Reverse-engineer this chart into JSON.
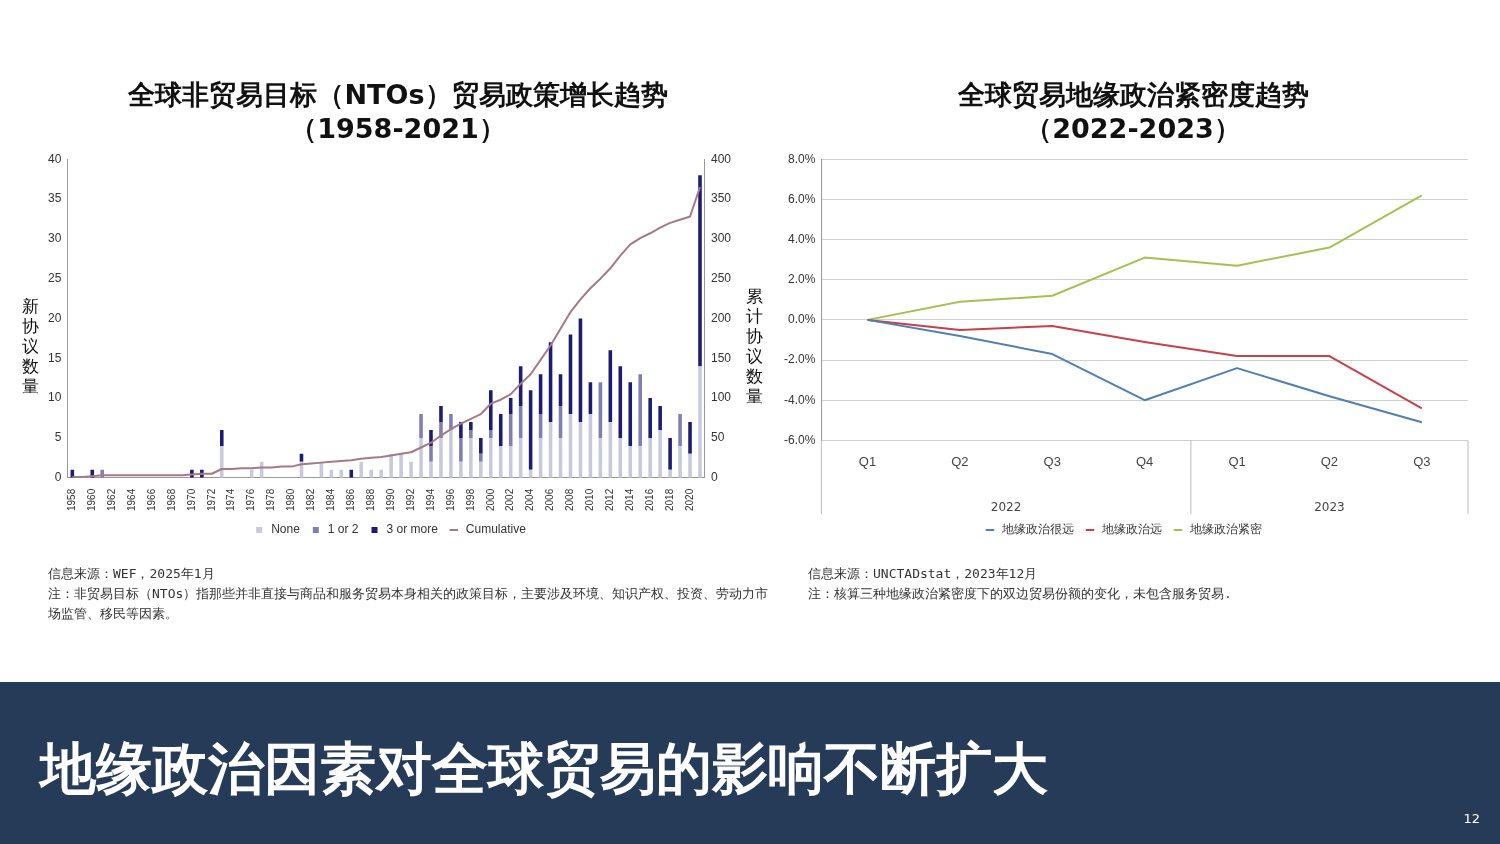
{
  "chart_data": [
    {
      "type": "bar",
      "title": "全球非贸易目标（NTOs）贸易政策增长趋势（1958-2021）",
      "ylabel": "新协议数量",
      "y2label": "累计协议数量",
      "categories": [
        "1958",
        null,
        "1960",
        null,
        "1962",
        null,
        "1964",
        null,
        "1966",
        null,
        "1968",
        null,
        "1970",
        null,
        "1972",
        null,
        "1974",
        null,
        "1976",
        null,
        "1978",
        null,
        "1980",
        null,
        "1982",
        null,
        "1984",
        null,
        "1986",
        null,
        "1988",
        null,
        "1990",
        null,
        "1992",
        null,
        "1994",
        null,
        "1996",
        null,
        "1998",
        null,
        "2000",
        null,
        "2002",
        null,
        "2004",
        null,
        "2006",
        null,
        "2008",
        null,
        "2010",
        null,
        "2012",
        null,
        "2014",
        null,
        "2016",
        null,
        "2018",
        null,
        "2020",
        null
      ],
      "stacked": true,
      "series": [
        {
          "name": "None",
          "color": "#c9c9dd",
          "values": [
            0,
            0,
            0,
            0,
            0,
            0,
            0,
            0,
            0,
            0,
            0,
            0,
            0,
            0,
            0,
            4,
            0,
            0,
            1,
            2,
            0,
            0,
            0,
            2,
            0,
            2,
            1,
            1,
            0,
            2,
            1,
            1,
            3,
            3,
            2,
            5,
            2,
            5,
            6,
            2,
            5,
            2,
            5,
            4,
            4,
            5,
            1,
            5,
            7,
            5,
            8,
            7,
            8,
            5,
            7,
            5,
            4,
            4,
            5,
            6,
            1,
            4,
            3,
            14
          ]
        },
        {
          "name": "1 or 2",
          "color": "#7f7fb3",
          "values": [
            0,
            0,
            0,
            1,
            0,
            0,
            0,
            0,
            0,
            0,
            0,
            0,
            0,
            0,
            0,
            0,
            0,
            0,
            0,
            0,
            0,
            0,
            0,
            0,
            0,
            0,
            0,
            0,
            0,
            0,
            0,
            0,
            0,
            0,
            0,
            3,
            2,
            2,
            2,
            3,
            1,
            1,
            1,
            0,
            4,
            4,
            0,
            3,
            0,
            4,
            0,
            0,
            0,
            7,
            0,
            0,
            0,
            9,
            0,
            0,
            0,
            4,
            0,
            0
          ]
        },
        {
          "name": "3 or more",
          "color": "#1c1c72",
          "values": [
            1,
            0,
            1,
            0,
            0,
            0,
            0,
            0,
            0,
            0,
            0,
            0,
            1,
            1,
            0,
            2,
            0,
            0,
            0,
            0,
            0,
            0,
            0,
            1,
            0,
            0,
            0,
            0,
            1,
            0,
            0,
            0,
            0,
            0,
            0,
            0,
            2,
            2,
            0,
            2,
            1,
            2,
            5,
            4,
            2,
            5,
            10,
            5,
            10,
            4,
            10,
            13,
            4,
            0,
            9,
            9,
            8,
            0,
            5,
            3,
            4,
            0,
            4,
            24
          ]
        },
        {
          "name": "Cumulative",
          "type": "line",
          "axis": "y2",
          "color": "#a47a86",
          "values": [
            1,
            1,
            2,
            3,
            3,
            3,
            3,
            3,
            3,
            3,
            3,
            3,
            4,
            5,
            5,
            11,
            11,
            12,
            12,
            13,
            13,
            14,
            14,
            17,
            18,
            19,
            20,
            21,
            22,
            24,
            25,
            26,
            28,
            30,
            32,
            38,
            44,
            53,
            61,
            68,
            74,
            80,
            93,
            98,
            105,
            118,
            130,
            148,
            166,
            187,
            208,
            224,
            238,
            250,
            263,
            279,
            293,
            301,
            307,
            314,
            320,
            324,
            328,
            365
          ]
        }
      ],
      "ylim": [
        0,
        40
      ],
      "yticks": [
        0,
        5,
        10,
        15,
        20,
        25,
        30,
        35,
        40
      ],
      "y2lim": [
        0,
        400
      ],
      "y2ticks": [
        0,
        50,
        100,
        150,
        200,
        250,
        300,
        350,
        400
      ],
      "grid": false,
      "legend": "bottom",
      "marker": "none",
      "annotations": [
        "信息来源：WEF，2025年1月",
        "注：非贸易目标（NTOs）指那些并非直接与商品和服务贸易本身相关的政策目标，主要涉及环境、知识产权、投资、劳动力市场监管、移民等因素。"
      ]
    },
    {
      "type": "line",
      "title": "全球贸易地缘政治紧密度趋势（2022-2023）",
      "categories": [
        "Q1",
        "Q2",
        "Q3",
        "Q4",
        "Q1",
        "Q2",
        "Q3"
      ],
      "series": [
        {
          "name": "地缘政治很远",
          "color": "#4f7fb5",
          "values": [
            0,
            -0.8,
            -1.7,
            -4.0,
            -2.4,
            -3.8,
            -5.1
          ]
        },
        {
          "name": "地缘政治远",
          "color": "#c8404a",
          "values": [
            0,
            -0.5,
            -0.3,
            -1.1,
            -1.8,
            -1.8,
            -4.4
          ]
        },
        {
          "name": "地缘政治紧密",
          "color": "#a8c050",
          "values": [
            0,
            0.9,
            1.2,
            3.1,
            2.7,
            3.6,
            6.2
          ]
        }
      ],
      "ylim": [
        -6,
        8
      ],
      "yticks": [
        {
          "value": -6,
          "label": "-6.0%"
        },
        {
          "value": -4,
          "label": "-4.0%"
        },
        {
          "value": -2,
          "label": "-2.0%"
        },
        {
          "value": 0,
          "label": "0.0%"
        },
        {
          "value": 2,
          "label": "2.0%"
        },
        {
          "value": 4,
          "label": "4.0%"
        },
        {
          "value": 6,
          "label": "6.0%"
        },
        {
          "value": 8,
          "label": "8.0%"
        }
      ],
      "grid": "y",
      "legend": "bottom",
      "marker": "none",
      "annotations": [
        "2022",
        "2023",
        "信息来源：UNCTADstat，2023年12月",
        "注：核算三种地缘政治紧密度下的双边贸易份额的变化，未包含服务贸易."
      ]
    },
    {
      "type": "other",
      "title": "地缘政治因素对全球贸易的影响不断扩大",
      "annotations": [
        "12"
      ]
    }
  ]
}
